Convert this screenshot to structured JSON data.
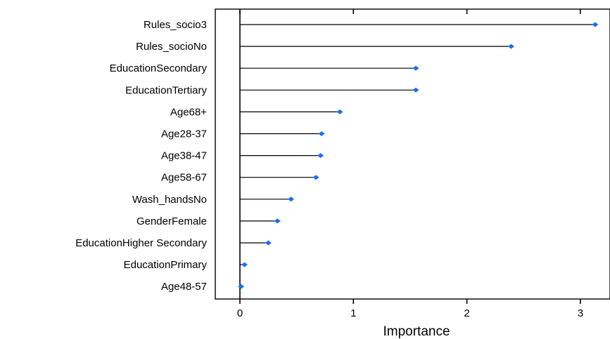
{
  "chart_data": {
    "type": "lollipop",
    "xlabel": "Importance",
    "ylabel": "",
    "title": "",
    "xlim": [
      -0.2,
      3.2
    ],
    "xticks": [
      0,
      1,
      2,
      3
    ],
    "grid": false,
    "legend": "none",
    "colors": {
      "point": "#1a6ff0",
      "line": "#000000",
      "zero_line": "#000000"
    },
    "categories": [
      "Rules_socio3",
      "Rules_socioNo",
      "EducationSecondary",
      "EducationTertiary",
      "Age68+",
      "Age28-37",
      "Age38-47",
      "Age58-67",
      "Wash_handsNo",
      "GenderFemale",
      "EducationHigher Secondary",
      "EducationPrimary",
      "Age48-57"
    ],
    "values": [
      3.13,
      2.39,
      1.55,
      1.55,
      0.88,
      0.72,
      0.71,
      0.67,
      0.45,
      0.33,
      0.25,
      0.04,
      0.01
    ]
  }
}
